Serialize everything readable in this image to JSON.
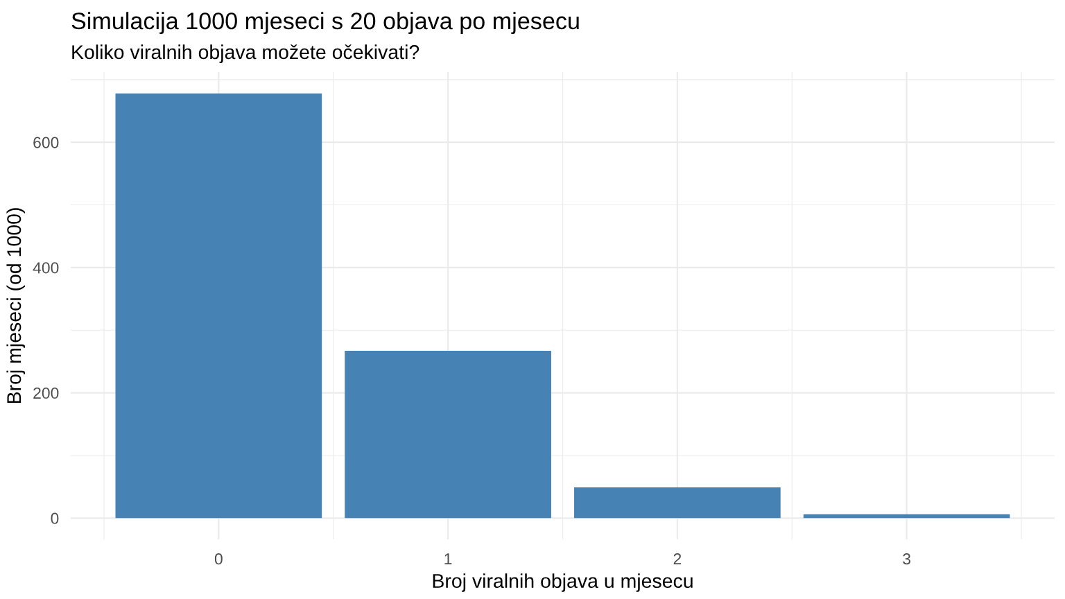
{
  "chart_data": {
    "type": "bar",
    "title": "Simulacija 1000 mjeseci s 20 objava po mjesecu",
    "subtitle": "Koliko viralnih objava možete očekivati?",
    "xlabel": "Broj viralnih objava u mjesecu",
    "ylabel": "Broj mjeseci (od 1000)",
    "x": [
      0,
      1,
      2,
      3
    ],
    "values": [
      678,
      267,
      49,
      6
    ],
    "color": "#4682b4",
    "xlim": [
      -0.645,
      3.645
    ],
    "xticks": [
      {
        "value": -0.5,
        "label": null
      },
      0,
      {
        "value": 0.5,
        "label": null
      },
      1,
      {
        "value": 1.5,
        "label": null
      },
      2,
      {
        "value": 2.5,
        "label": null
      },
      3,
      {
        "value": 3.5,
        "label": null
      }
    ],
    "ylim": [
      -34,
      712
    ],
    "yticks": [
      0,
      {
        "value": 100,
        "label": null
      },
      200,
      {
        "value": 300,
        "label": null
      },
      400,
      {
        "value": 500,
        "label": null
      },
      600,
      {
        "value": 700,
        "label": null
      }
    ],
    "grid": true
  }
}
